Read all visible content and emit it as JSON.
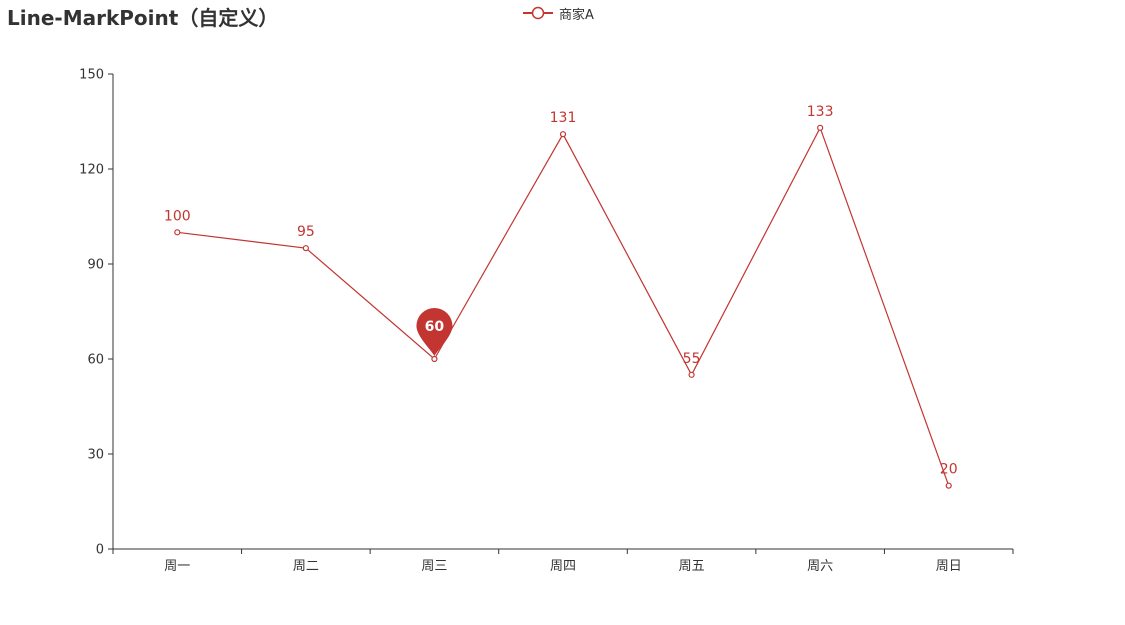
{
  "chart_data": {
    "type": "line",
    "title": "Line-MarkPoint（自定义）",
    "categories": [
      "周一",
      "周二",
      "周三",
      "周四",
      "周五",
      "周六",
      "周日"
    ],
    "series": [
      {
        "name": "商家A",
        "values": [
          100,
          95,
          60,
          131,
          55,
          133,
          20
        ],
        "color": "#c23531"
      }
    ],
    "ylim": [
      0,
      150
    ],
    "yticks": [
      0,
      30,
      60,
      90,
      120,
      150
    ],
    "grid": false,
    "legend_position": "top-center",
    "mark_point": {
      "category": "周三",
      "value": 60,
      "label": "60",
      "symbol": "pin",
      "color": "#c23531"
    },
    "axis_color": "#333333"
  }
}
